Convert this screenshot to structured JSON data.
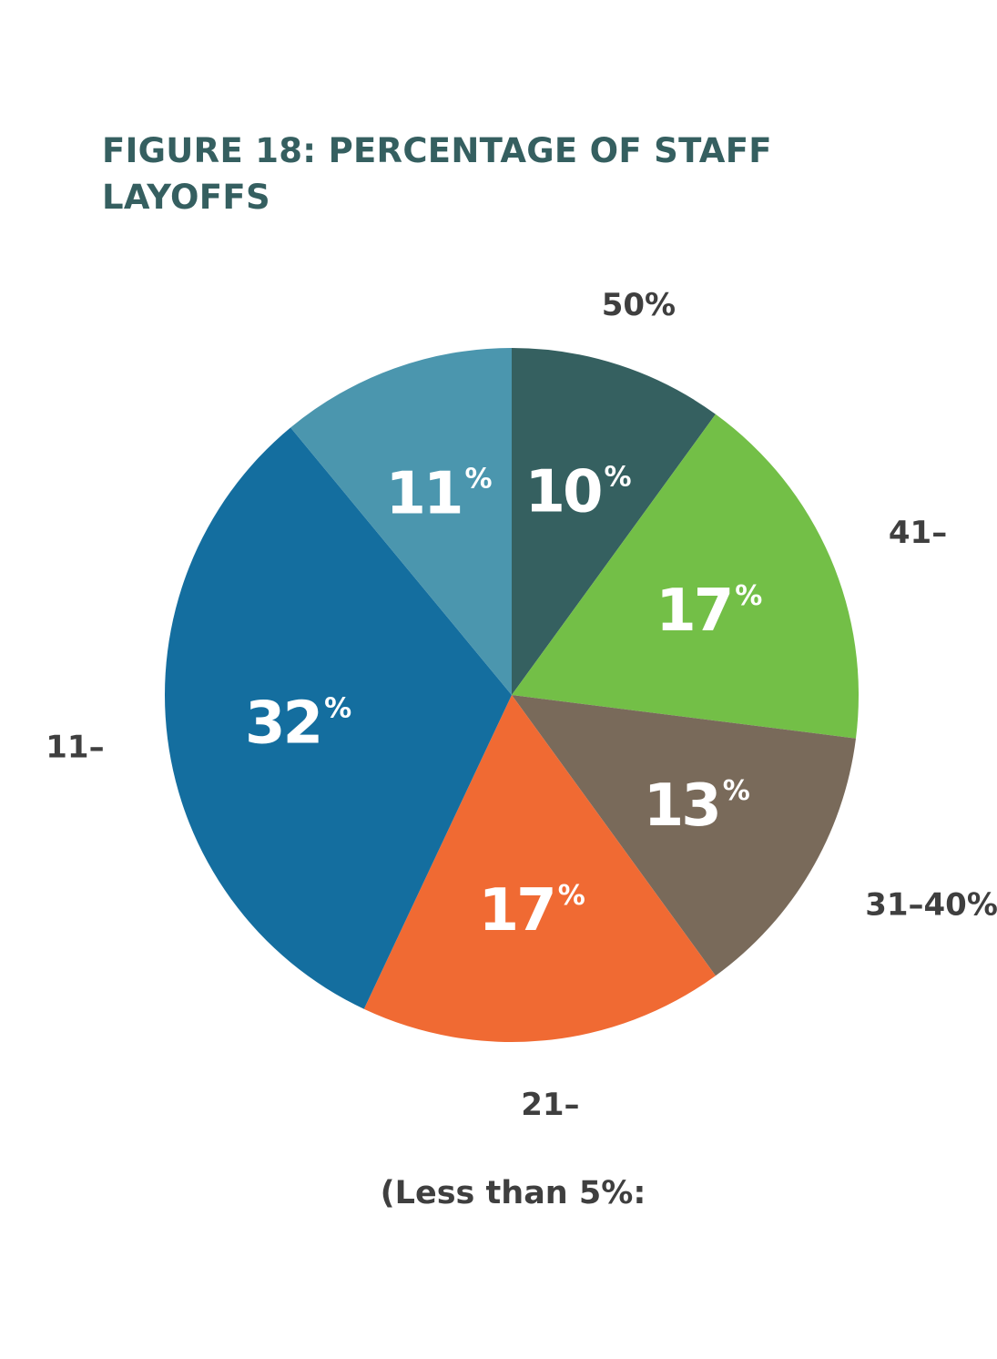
{
  "chart_data": {
    "type": "pie",
    "title": "FIGURE 18: PERCENTAGE OF STAFF LAYOFFS",
    "start": "top",
    "direction": "clockwise",
    "slices": [
      {
        "label": "50%",
        "value": 10,
        "value_label": "10",
        "color": "#356060"
      },
      {
        "label": "41–",
        "value": 17,
        "value_label": "17",
        "color": "#73bf47"
      },
      {
        "label": "31–40%",
        "value": 13,
        "value_label": "13",
        "color": "#796a5a"
      },
      {
        "label": "21–",
        "value": 17,
        "value_label": "17",
        "color": "#f06a33"
      },
      {
        "label": "11–",
        "value": 32,
        "value_label": "32",
        "color": "#146e9f"
      },
      {
        "label": "",
        "value": 11,
        "value_label": "11",
        "color": "#4b96ae"
      }
    ],
    "percent_sign": "%",
    "footnote": "(Less than 5%:"
  }
}
